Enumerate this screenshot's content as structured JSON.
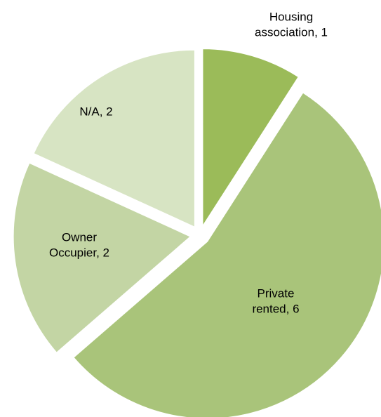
{
  "chart_data": {
    "type": "pie",
    "values": [
      1,
      6,
      2,
      2
    ],
    "value_labels": [
      [
        "Housing",
        "association, 1"
      ],
      [
        "Private",
        "rented, 6"
      ],
      [
        "Owner",
        "Occupier, 2"
      ],
      [
        "N/A, 2"
      ]
    ],
    "colors": [
      "#9bbb59",
      "#a9c47a",
      "#c3d5a4",
      "#d7e4c3"
    ]
  }
}
